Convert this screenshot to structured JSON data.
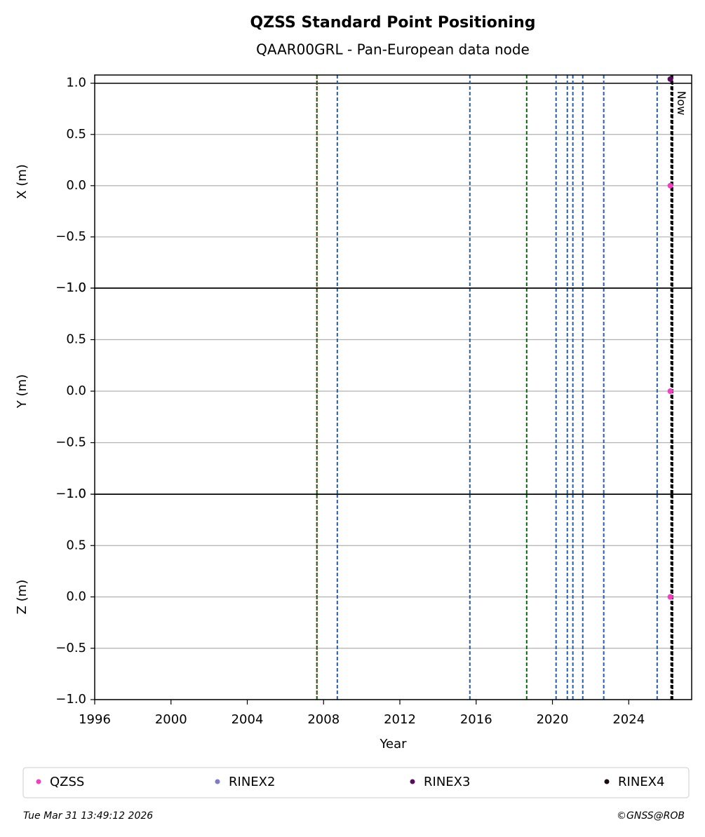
{
  "chart_data": [
    {
      "type": "scatter",
      "title": "QZSS Standard Point Positioning",
      "subtitle": "QAAR00GRL - Pan-European data node",
      "ylabel": "X (m)",
      "xlim": [
        1996,
        2027.3
      ],
      "ylim": [
        -1,
        1.08
      ],
      "yticks": [
        {
          "value": -1,
          "label": "−1.0"
        },
        {
          "value": -0.5,
          "label": "−0.5"
        },
        {
          "value": 0,
          "label": "0.0"
        },
        0.5,
        {
          "value": 1,
          "label": "1.0"
        }
      ],
      "grid": true,
      "hline": 1,
      "series": [
        {
          "name": "QZSS",
          "color": "#f03fbf",
          "x": [
            2026.18
          ],
          "values": [
            0
          ]
        },
        {
          "name": "RINEX2",
          "color": "#7b7bc8",
          "x": [],
          "values": []
        },
        {
          "name": "RINEX3",
          "color": "#5c0a5c",
          "x": [
            2026.18
          ],
          "values": [
            1.04
          ]
        },
        {
          "name": "RINEX4",
          "color": "#1a0a14",
          "x": [],
          "values": []
        }
      ]
    },
    {
      "type": "scatter",
      "ylabel": "Y (m)",
      "xlim": [
        1996,
        2027.3
      ],
      "ylim": [
        -1,
        1
      ],
      "yticks": [
        {
          "value": -1,
          "label": "−1.0"
        },
        {
          "value": -0.5,
          "label": "−0.5"
        },
        {
          "value": 0,
          "label": "0.0"
        },
        0.5,
        {
          "value": 1,
          "label": "1.0"
        }
      ],
      "grid": true,
      "series": [
        {
          "color": "#f03fbf",
          "x": [
            2026.18
          ],
          "values": [
            0
          ]
        }
      ]
    },
    {
      "type": "scatter",
      "ylabel": "Z (m)",
      "xlabel": "Year",
      "xlim": [
        1996,
        2027.3
      ],
      "ylim": [
        -1,
        1
      ],
      "xticks": [
        1996,
        2000,
        2004,
        2008,
        2012,
        2016,
        2020,
        2024
      ],
      "yticks": [
        {
          "value": -1,
          "label": "−1.0"
        },
        {
          "value": -0.5,
          "label": "−0.5"
        },
        {
          "value": 0,
          "label": "0.0"
        },
        0.5,
        {
          "value": 1,
          "label": "1.0"
        }
      ],
      "grid": true,
      "series": [
        {
          "color": "#f03fbf",
          "x": [
            2026.18
          ],
          "values": [
            0
          ]
        }
      ]
    }
  ],
  "markers": {
    "events": [
      {
        "x": 2007.65,
        "color": "#d62728",
        "dash": "2,2"
      },
      {
        "x": 2007.65,
        "color": "#007000",
        "dash": "5,3"
      },
      {
        "x": 2008.72,
        "color": "#1f5fb0",
        "dash": "5,3"
      },
      {
        "x": 2015.67,
        "color": "#1f5fb0",
        "dash": "5,3"
      },
      {
        "x": 2018.65,
        "color": "#007000",
        "dash": "5,3"
      },
      {
        "x": 2020.19,
        "color": "#1f5fb0",
        "dash": "5,3"
      },
      {
        "x": 2020.78,
        "color": "#1f5fb0",
        "dash": "5,3"
      },
      {
        "x": 2021.07,
        "color": "#1f5fb0",
        "dash": "5,3"
      },
      {
        "x": 2021.59,
        "color": "#1f5fb0",
        "dash": "5,3"
      },
      {
        "x": 2022.69,
        "color": "#1f5fb0",
        "dash": "5,3"
      },
      {
        "x": 2025.49,
        "color": "#1f5fb0",
        "dash": "5,3"
      },
      {
        "x": 2026.22,
        "color": "#000000",
        "dash": "5,3"
      }
    ],
    "now": {
      "x": 2026.29,
      "label": "Now"
    }
  },
  "footer": {
    "timestamp": "Tue Mar 31 13:49:12 2026",
    "credit": "©GNSS@ROB"
  }
}
